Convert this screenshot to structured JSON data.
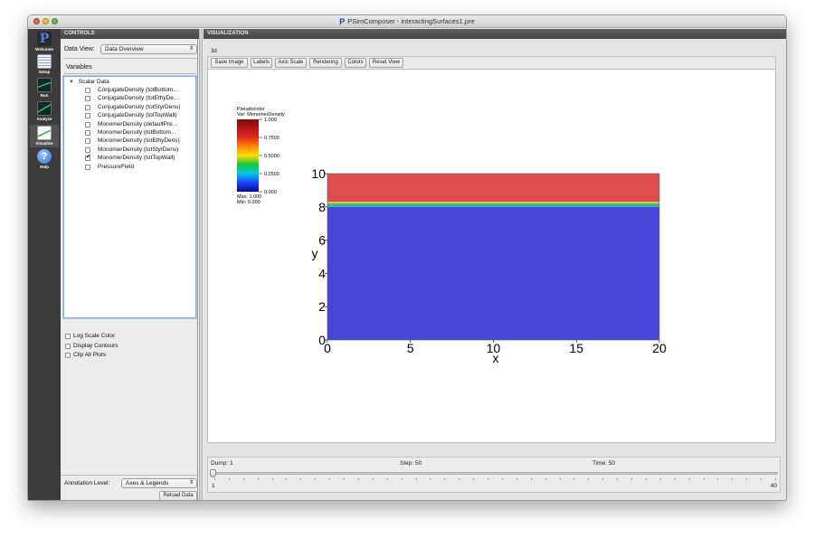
{
  "window": {
    "title": "PSimComposer - interactingSurfaces1.pre"
  },
  "nav": [
    {
      "label": "Welcome",
      "icon": "psim-logo-icon"
    },
    {
      "label": "Setup",
      "icon": "document-edit-icon"
    },
    {
      "label": "Run",
      "icon": "chart-run-icon"
    },
    {
      "label": "Analyze",
      "icon": "chart-analyze-icon"
    },
    {
      "label": "Visualize",
      "icon": "chart-visualize-icon"
    },
    {
      "label": "Help",
      "icon": "help-question-icon"
    }
  ],
  "controls": {
    "header": "CONTROLS",
    "data_view_label": "Data View:",
    "data_view_value": "Data Overview",
    "variables_label": "Variables",
    "tree_root": "Scalar Data",
    "items": [
      {
        "label": "ConjugateDensity (totBottom...",
        "checked": false
      },
      {
        "label": "ConjugateDensity (totEthyDe...",
        "checked": false
      },
      {
        "label": "ConjugateDensity (totStyrDens)",
        "checked": false
      },
      {
        "label": "ConjugateDensity (totTopWall)",
        "checked": false
      },
      {
        "label": "MonomerDensity (defaultPre...",
        "checked": false
      },
      {
        "label": "MonomerDensity (totBottom...",
        "checked": false
      },
      {
        "label": "MonomerDensity (totEthyDens)",
        "checked": false
      },
      {
        "label": "MonomerDensity (totStyrDens)",
        "checked": false
      },
      {
        "label": "MonomerDensity (totTopWall)",
        "checked": true
      },
      {
        "label": "PressureField",
        "checked": false
      }
    ],
    "options": [
      "Log Scale Color",
      "Display Contours",
      "Clip All Plots"
    ],
    "annotation_label": "Annotation Level:",
    "annotation_value": "Axes & Legends",
    "reload_label": "Reload Data"
  },
  "viz": {
    "header": "VISUALIZATION",
    "tab": "3d",
    "toolbar": [
      "Save Image",
      "Labels",
      "Axis Scale",
      "Rendering",
      "Colors",
      "Reset View"
    ],
    "legend": {
      "title1": "Pseudocolor",
      "title2": "Var: MonomerDensity",
      "ticks": [
        "1.000",
        "0.7500",
        "0.5000",
        "0.2500",
        "0.000"
      ],
      "max": "Max:  1.000",
      "min": "Min:  0.000"
    },
    "plot": {
      "xlabel": "x",
      "ylabel": "y",
      "xticks": [
        "0",
        "5",
        "10",
        "15",
        "20"
      ],
      "yticks": [
        "10",
        "8",
        "6",
        "4",
        "2",
        "0"
      ],
      "colors": {
        "low": "#4545d8",
        "high": "#dd4d4d"
      }
    }
  },
  "bottom": {
    "dump": "Dump: 1",
    "step": "Step: 50",
    "time": "Time: 50",
    "slider_min": "1",
    "slider_max": "40",
    "slider_value": 1
  }
}
